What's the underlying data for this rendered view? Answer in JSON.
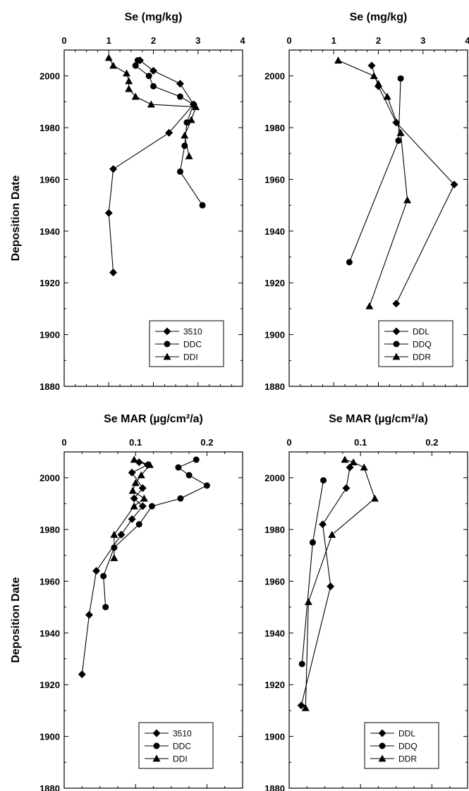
{
  "chart_data": [
    {
      "type": "line",
      "title": "",
      "xlabel": "Se (mg/kg)",
      "ylabel": "Deposition Date",
      "xlim": [
        0,
        4
      ],
      "ylim": [
        1880,
        2010
      ],
      "xticks": [
        0,
        1,
        2,
        3,
        4
      ],
      "yticks": [
        1880,
        1900,
        1920,
        1940,
        1960,
        1980,
        2000
      ],
      "legend_position": "bottom-right",
      "series": [
        {
          "name": "3510",
          "marker": "diamond",
          "x": [
            1.7,
            2.0,
            2.6,
            2.9,
            2.35,
            1.1,
            1.0,
            1.1
          ],
          "y": [
            2006,
            2002,
            1997,
            1989,
            1978,
            1964,
            1947,
            1924
          ]
        },
        {
          "name": "DDC",
          "marker": "circle",
          "x": [
            1.65,
            1.6,
            1.9,
            2.0,
            2.6,
            2.9,
            2.75,
            2.7,
            2.6,
            3.1
          ],
          "y": [
            2006,
            2004,
            2000,
            1996,
            1992,
            1989,
            1982,
            1973,
            1963,
            1950
          ]
        },
        {
          "name": "DDI",
          "marker": "triangle",
          "x": [
            1.0,
            1.1,
            1.4,
            1.45,
            1.45,
            1.6,
            1.95,
            2.95,
            2.85,
            2.7,
            2.8
          ],
          "y": [
            2007,
            2004,
            2001,
            1998,
            1995,
            1992,
            1989,
            1988,
            1983,
            1977,
            1969
          ]
        }
      ]
    },
    {
      "type": "line",
      "title": "",
      "xlabel": "Se (mg/kg)",
      "ylabel": "",
      "xlim": [
        0,
        4
      ],
      "ylim": [
        1880,
        2010
      ],
      "xticks": [
        0,
        1,
        2,
        3,
        4
      ],
      "yticks": [
        1880,
        1900,
        1920,
        1940,
        1960,
        1980,
        2000
      ],
      "legend_position": "bottom-right",
      "series": [
        {
          "name": "DDL",
          "marker": "diamond",
          "x": [
            1.85,
            2.0,
            2.4,
            3.7,
            2.4
          ],
          "y": [
            2004,
            1996,
            1982,
            1958,
            1912
          ]
        },
        {
          "name": "DDQ",
          "marker": "circle",
          "x": [
            2.5,
            2.45,
            1.35
          ],
          "y": [
            1999,
            1975,
            1928
          ]
        },
        {
          "name": "DDR",
          "marker": "triangle",
          "x": [
            1.1,
            1.9,
            2.0,
            2.2,
            2.5,
            2.65,
            1.8
          ],
          "y": [
            2006,
            2000,
            1997,
            1992,
            1978,
            1952,
            1911
          ]
        }
      ]
    },
    {
      "type": "line",
      "title": "",
      "xlabel": "Se MAR (µg/cm²/a)",
      "ylabel": "Deposition Date",
      "xlim": [
        0,
        0.25
      ],
      "ylim": [
        1880,
        2010
      ],
      "xticks": [
        0,
        0.1,
        0.2
      ],
      "yticks": [
        1880,
        1900,
        1920,
        1940,
        1960,
        1980,
        2000
      ],
      "legend_position": "bottom-right",
      "series": [
        {
          "name": "3510",
          "marker": "diamond",
          "x": [
            0.105,
            0.117,
            0.095,
            0.11,
            0.098,
            0.11,
            0.095,
            0.08,
            0.045,
            0.035,
            0.025
          ],
          "y": [
            2006,
            2005,
            2002,
            1996,
            1992,
            1989,
            1984,
            1978,
            1964,
            1947,
            1924
          ]
        },
        {
          "name": "DDC",
          "marker": "circle",
          "x": [
            0.185,
            0.16,
            0.175,
            0.2,
            0.163,
            0.123,
            0.105,
            0.07,
            0.055,
            0.058
          ],
          "y": [
            2007,
            2004,
            2001,
            1997,
            1992,
            1989,
            1982,
            1973,
            1962,
            1950
          ]
        },
        {
          "name": "DDI",
          "marker": "triangle",
          "x": [
            0.098,
            0.12,
            0.108,
            0.1,
            0.096,
            0.112,
            0.098,
            0.07,
            0.07
          ],
          "y": [
            2007,
            2005,
            2001,
            1998,
            1995,
            1992,
            1989,
            1978,
            1969
          ]
        }
      ]
    },
    {
      "type": "line",
      "title": "",
      "xlabel": "Se MAR (µg/cm²/a)",
      "ylabel": "",
      "xlim": [
        0,
        0.25
      ],
      "ylim": [
        1880,
        2010
      ],
      "xticks": [
        0,
        0.1,
        0.2
      ],
      "yticks": [
        1880,
        1900,
        1920,
        1940,
        1960,
        1980,
        2000
      ],
      "legend_position": "bottom-right",
      "series": [
        {
          "name": "DDL",
          "marker": "diamond",
          "x": [
            0.085,
            0.08,
            0.047,
            0.058,
            0.017
          ],
          "y": [
            2004,
            1996,
            1982,
            1958,
            1912
          ]
        },
        {
          "name": "DDQ",
          "marker": "circle",
          "x": [
            0.048,
            0.033,
            0.018
          ],
          "y": [
            1999,
            1975,
            1928
          ]
        },
        {
          "name": "DDR",
          "marker": "triangle",
          "x": [
            0.078,
            0.09,
            0.105,
            0.12,
            0.06,
            0.027,
            0.023
          ],
          "y": [
            2007,
            2006,
            2004,
            1992,
            1978,
            1952,
            1911
          ]
        }
      ]
    }
  ]
}
